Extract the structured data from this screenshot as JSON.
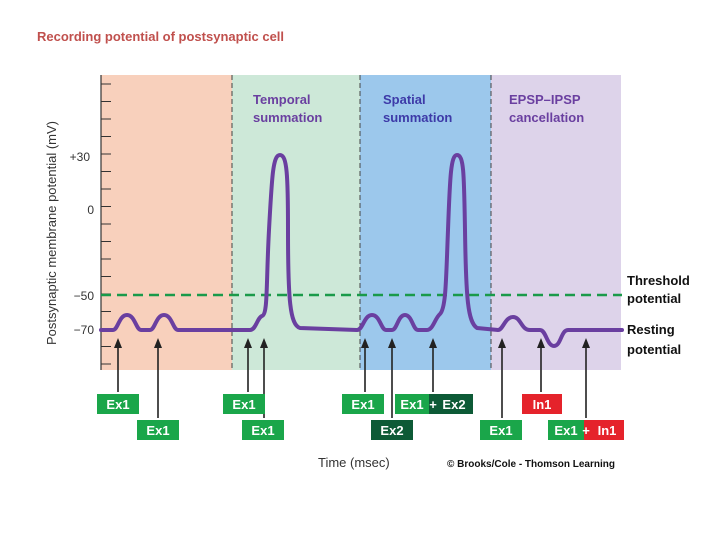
{
  "title": "Recording potential of postsynaptic cell",
  "y_axis_label": "Postsynaptic membrane potential (mV)",
  "x_axis_label": "Time (msec)",
  "credit": "© Brooks/Cole - Thomson Learning",
  "y_ticks": [
    "+30",
    "0",
    "−50",
    "−70"
  ],
  "panels": [
    {
      "title_line1": "",
      "title_line2": "",
      "color": "#f8d0bc"
    },
    {
      "title_line1": "Temporal",
      "title_line2": "summation",
      "color": "#cde8d8"
    },
    {
      "title_line1": "Spatial",
      "title_line2": "summation",
      "color": "#9cc8ec"
    },
    {
      "title_line1": "EPSP–IPSP",
      "title_line2": "cancellation",
      "color": "#ddd3ea"
    }
  ],
  "threshold_label_line1": "Threshold",
  "threshold_label_line2": "potential",
  "resting_label_line1": "Resting",
  "resting_label_line2": "potential",
  "stimulus_labels": {
    "p1_top": "Ex1",
    "p1_bottom": "Ex1",
    "p2_top": "Ex1",
    "p2_bottom": "Ex1",
    "p3_top_a": "Ex1",
    "p3_combo_ex1": "Ex1",
    "p3_combo_plus": "+",
    "p3_combo_ex2": "Ex2",
    "p3_bottom": "Ex2",
    "p4_top": "In1",
    "p4_ex1": "Ex1",
    "p4_combo_ex1": "Ex1",
    "p4_combo_plus": "+",
    "p4_combo_in1": "In1"
  },
  "colors": {
    "title": "#c0504d",
    "axis_text": "#333333",
    "trace": "#6a3fa0",
    "threshold": "#1a9a4a",
    "excitatory": "#1aa64a",
    "excitatory_dark": "#0d5a36",
    "inhibitory": "#e5232b",
    "panel_title": "#6a3fa0",
    "spatial_title": "#3d3aa8"
  }
}
